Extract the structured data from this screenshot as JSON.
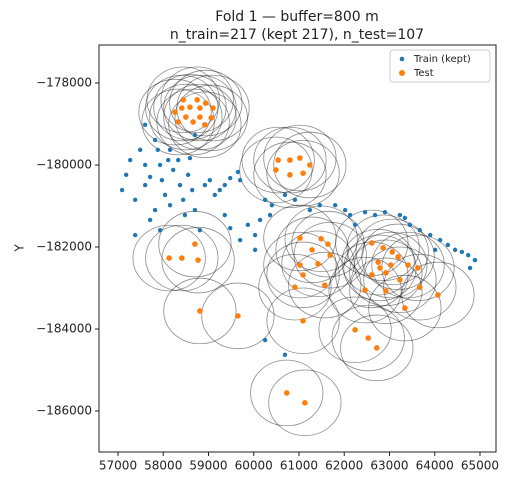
{
  "chart_data": {
    "type": "scatter",
    "title": "Fold 1 — buffer=800 m",
    "subtitle": "n_train=217 (kept 217), n_test=107",
    "y_label": "Y",
    "buffer_m": 800,
    "legend": "upper right",
    "xlim": [
      56580,
      65354
    ],
    "ylim": [
      -187000,
      -177073
    ],
    "xticks": [
      57000,
      58000,
      59000,
      60000,
      61000,
      62000,
      63000,
      64000,
      65000
    ],
    "yticks": [
      {
        "value": -178000,
        "label": "−178000"
      },
      {
        "value": -180000,
        "label": "−180000"
      },
      {
        "value": -182000,
        "label": "−182000"
      },
      {
        "value": -184000,
        "label": "−184000"
      },
      {
        "value": -186000,
        "label": "−186000"
      }
    ],
    "series": [
      {
        "name": "Train (kept)",
        "color": "#1f77b4",
        "x": [
          57090,
          57180,
          57270,
          57380,
          57490,
          57600,
          57600,
          57710,
          57820,
          57880,
          57930,
          57970,
          58040,
          58110,
          58150,
          58220,
          58330,
          58370,
          58440,
          58550,
          58590,
          58640,
          58700,
          57710,
          57820,
          57930,
          58150,
          58480,
          58700,
          58810,
          58920,
          59030,
          59140,
          59250,
          59360,
          59480,
          59650,
          59700,
          59360,
          59480,
          59700,
          59870,
          60030,
          60140,
          60360,
          60250,
          60400,
          60690,
          60910,
          61240,
          61460,
          61800,
          62020,
          62130,
          62240,
          62460,
          62680,
          62900,
          63230,
          63340,
          63450,
          63670,
          63900,
          64120,
          64290,
          64450,
          64600,
          64740,
          64890,
          64780,
          64010,
          60250,
          60690,
          60030,
          57380,
          57600
        ],
        "values": [
          -180610,
          -180240,
          -179880,
          -180850,
          -179630,
          -180000,
          -180490,
          -180290,
          -179390,
          -179630,
          -180000,
          -180370,
          -180730,
          -179880,
          -179630,
          -180120,
          -179880,
          -180490,
          -180850,
          -180240,
          -179830,
          -180610,
          -179270,
          -181340,
          -181100,
          -181590,
          -180980,
          -181220,
          -181100,
          -181590,
          -180490,
          -180370,
          -180730,
          -180610,
          -180490,
          -180320,
          -180170,
          -180370,
          -181220,
          -181540,
          -181830,
          -181460,
          -181710,
          -181340,
          -181220,
          -180850,
          -180980,
          -180730,
          -180850,
          -181100,
          -180980,
          -180980,
          -181100,
          -181220,
          -181460,
          -181150,
          -181220,
          -181150,
          -181220,
          -181290,
          -181460,
          -181590,
          -181710,
          -181830,
          -181950,
          -182070,
          -182120,
          -182200,
          -182320,
          -182510,
          -182070,
          -184270,
          -184630,
          -182070,
          -181710,
          -179020
        ]
      },
      {
        "name": "Test",
        "color": "#ff7f0e",
        "x": [
          58440,
          58590,
          58750,
          58940,
          59100,
          58260,
          58500,
          58810,
          59060,
          58330,
          58660,
          58920,
          58410,
          58810,
          60540,
          60800,
          61020,
          60490,
          60800,
          61090,
          61240,
          58130,
          58700,
          58410,
          58770,
          58810,
          59650,
          61020,
          61490,
          61640,
          61290,
          61690,
          61020,
          61420,
          61090,
          60910,
          61570,
          61090,
          62610,
          62860,
          63060,
          62750,
          63030,
          62790,
          63190,
          63410,
          63630,
          62610,
          62920,
          63230,
          63670,
          64070,
          63340,
          62920,
          62460,
          62240,
          62530,
          62720,
          60730,
          61130
        ],
        "values": [
          -178410,
          -178590,
          -178410,
          -178490,
          -178610,
          -178710,
          -178830,
          -178830,
          -178850,
          -178950,
          -178950,
          -179020,
          -178610,
          -178610,
          -179880,
          -179880,
          -179830,
          -180120,
          -180240,
          -180200,
          -180000,
          -182270,
          -181930,
          -182270,
          -182320,
          -183560,
          -183680,
          -181780,
          -181800,
          -181930,
          -182070,
          -182200,
          -182440,
          -182410,
          -182680,
          -182980,
          -182930,
          -183800,
          -181900,
          -182020,
          -182120,
          -182370,
          -182440,
          -182510,
          -182240,
          -182440,
          -182510,
          -182680,
          -182630,
          -182800,
          -182980,
          -183170,
          -183490,
          -183070,
          -183050,
          -184020,
          -184220,
          -184460,
          -185560,
          -185800
        ]
      }
    ]
  }
}
